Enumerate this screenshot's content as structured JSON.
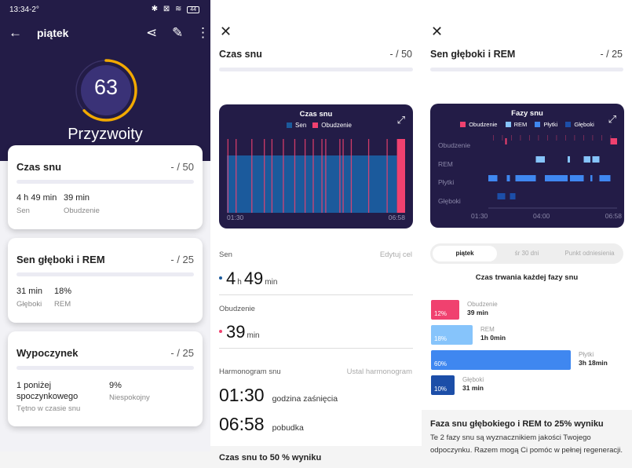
{
  "colors": {
    "navy": "#231c47",
    "sleep": "#1b5a9c",
    "awake": "#f0416f",
    "rem": "#86c4fb",
    "light": "#3f87f0",
    "deep": "#1c4ea8",
    "ring": "#f2a900"
  },
  "overview": {
    "status_time": "13:34",
    "status_temp": "-2°",
    "status_icons": "bluetooth-icon sim-icon wifi-icon battery-icon",
    "battery": "44",
    "title": "piątek",
    "score": 63,
    "score_max": 100,
    "verdict": "Przyzwoity",
    "cards": [
      {
        "title": "Czas snu",
        "score": "- / 50",
        "stats": [
          {
            "value": "4 h 49 min",
            "label": "Sen"
          },
          {
            "value": "39 min",
            "label": "Obudzenie"
          }
        ]
      },
      {
        "title": "Sen głęboki i REM",
        "score": "- / 25",
        "stats": [
          {
            "value": "31 min",
            "label": "Głęboki"
          },
          {
            "value": "18%",
            "label": "REM"
          }
        ]
      },
      {
        "title": "Wypoczynek",
        "score": "- / 25",
        "stats": [
          {
            "value": "1 poniżej spoczynkowego",
            "label": "Tętno w czasie snu"
          },
          {
            "value": "9%",
            "label": "Niespokojny"
          }
        ]
      }
    ]
  },
  "sleep_time": {
    "title": "Czas snu",
    "score": "- / 50",
    "chart": {
      "title": "Czas snu",
      "legend": [
        "Sen",
        "Obudzenie"
      ],
      "x_start": "01:30",
      "x_end": "06:58",
      "awake_marks": [
        "01:31",
        "01:46",
        "02:15",
        "02:38",
        "02:52",
        "03:13",
        "03:34",
        "03:53",
        "04:08",
        "04:24",
        "04:31",
        "04:57",
        "05:03",
        "05:18",
        "05:50",
        "06:24"
      ],
      "awake_block": [
        "06:43",
        "06:58"
      ]
    },
    "sen_label": "Sen",
    "edit_goal": "Edytuj cel",
    "sen_h": "4",
    "sen_h_unit": "h",
    "sen_m": "49",
    "sen_m_unit": "min",
    "awake_label": "Obudzenie",
    "awake_m": "39",
    "awake_unit": "min",
    "schedule_label": "Harmonogram snu",
    "schedule_link": "Ustal harmonogram",
    "bedtime": "01:30",
    "bedtime_label": "godzina zaśnięcia",
    "wake": "06:58",
    "wake_label": "pobudka",
    "footer": "Czas snu to 50 % wyniku"
  },
  "deep_rem": {
    "title": "Sen głęboki i REM",
    "score": "- / 25",
    "chart": {
      "title": "Fazy snu",
      "legend": [
        "Obudzenie",
        "REM",
        "Płytki",
        "Głęboki"
      ],
      "y_labels": [
        "Obudzenie",
        "REM",
        "Płytki",
        "Głęboki"
      ],
      "x_ticks": [
        "01:30",
        "04:00",
        "06:58"
      ],
      "segments": [
        [
          "01:30",
          "01:53",
          "Płytki"
        ],
        [
          "01:53",
          "02:13",
          "Głęboki"
        ],
        [
          "02:13",
          "02:17",
          "Obudzenie"
        ],
        [
          "02:17",
          "02:25",
          "Płytki"
        ],
        [
          "02:25",
          "02:39",
          "Głęboki"
        ],
        [
          "02:39",
          "03:31",
          "Płytki"
        ],
        [
          "03:31",
          "03:54",
          "REM"
        ],
        [
          "03:54",
          "04:52",
          "Płytki"
        ],
        [
          "04:52",
          "04:58",
          "REM"
        ],
        [
          "04:58",
          "05:33",
          "Płytki"
        ],
        [
          "05:33",
          "05:50",
          "REM"
        ],
        [
          "05:50",
          "05:55",
          "Płytki"
        ],
        [
          "05:55",
          "06:13",
          "REM"
        ],
        [
          "06:13",
          "06:41",
          "Płytki"
        ],
        [
          "06:41",
          "06:58",
          "Obudzenie"
        ]
      ]
    },
    "tabs": [
      "piątek",
      "śr 30 dni",
      "Punkt odniesienia"
    ],
    "active_tab": 0,
    "durations_title": "Czas trwania każdej fazy snu",
    "phases": [
      {
        "name": "Obudzenie",
        "pct": 12,
        "pct_label": "12%",
        "time": "39 min"
      },
      {
        "name": "REM",
        "pct": 18,
        "pct_label": "18%",
        "time": "1h 0min"
      },
      {
        "name": "Płytki",
        "pct": 60,
        "pct_label": "60%",
        "time": "3h 18min"
      },
      {
        "name": "Głęboki",
        "pct": 10,
        "pct_label": "10%",
        "time": "31 min"
      }
    ],
    "info_title": "Faza snu głębokiego i REM to 25% wyniku",
    "info_text": "Te 2 fazy snu są wyznacznikiem jakości Twojego odpoczynku. Razem mogą Ci pomóc w pełnej regeneracji."
  }
}
